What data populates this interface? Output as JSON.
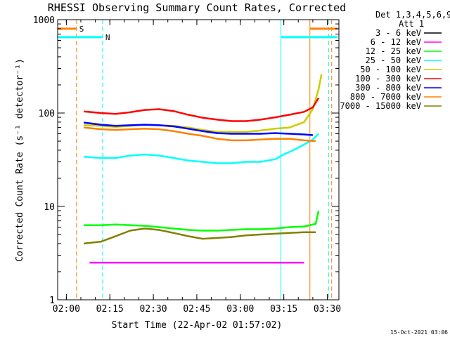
{
  "chart_data": {
    "type": "line",
    "title": "RHESSI Observing Summary Count Rates, Corrected",
    "xlabel": "Start Time (22-Apr-02 01:57:02)",
    "ylabel": "Corrected Count Rate (s⁻¹ detector⁻¹)",
    "yscale": "log",
    "ylim": [
      1,
      1000
    ],
    "xlim_minutes": [
      0,
      97
    ],
    "x_unit": "minutes since 01:57:02",
    "x_ticks": [
      {
        "m": 3,
        "label": "02:00"
      },
      {
        "m": 18,
        "label": "02:15"
      },
      {
        "m": 33,
        "label": "02:30"
      },
      {
        "m": 48,
        "label": "02:45"
      },
      {
        "m": 63,
        "label": "03:00"
      },
      {
        "m": 78,
        "label": "03:15"
      },
      {
        "m": 93,
        "label": "03:30"
      }
    ],
    "y_ticks": [
      {
        "v": 1,
        "label": "1"
      },
      {
        "v": 10,
        "label": "10"
      },
      {
        "v": 100,
        "label": "100"
      },
      {
        "v": 1000,
        "label": "1000"
      }
    ],
    "legend_header": [
      "Det 1,3,4,5,6,9,",
      "Att 1"
    ],
    "footer_date": "15-Oct-2021 03:06",
    "series": [
      {
        "name": "3 - 6 keV",
        "color": "#000000",
        "x": [],
        "y": []
      },
      {
        "name": "6 - 12 keV",
        "color": "#ff00ff",
        "x": [
          11,
          15,
          20,
          30,
          40,
          50,
          60,
          70,
          80,
          85
        ],
        "y": [
          2.5,
          2.5,
          2.5,
          2.5,
          2.5,
          2.5,
          2.5,
          2.5,
          2.5,
          2.5
        ]
      },
      {
        "name": "12 - 25 keV",
        "color": "#00ff00",
        "x": [
          9,
          15,
          20,
          30,
          35,
          40,
          45,
          50,
          55,
          60,
          65,
          70,
          75,
          80,
          85,
          89,
          90
        ],
        "y": [
          6.3,
          6.3,
          6.4,
          6.2,
          6.0,
          5.8,
          5.6,
          5.5,
          5.5,
          5.6,
          5.7,
          5.7,
          5.8,
          6.0,
          6.1,
          6.5,
          9.0
        ]
      },
      {
        "name": "25 - 50 keV",
        "color": "#00ffff",
        "x": [
          9,
          15,
          20,
          25,
          30,
          35,
          40,
          45,
          50,
          55,
          60,
          65,
          70,
          75,
          78,
          82,
          85,
          88,
          90
        ],
        "y": [
          34,
          33,
          33,
          35,
          36,
          35,
          33,
          31,
          30,
          29,
          29,
          30,
          30,
          32,
          36,
          41,
          46,
          52,
          60
        ]
      },
      {
        "name": "50 - 100 keV",
        "color": "#cccc00",
        "x": [
          9,
          15,
          20,
          25,
          30,
          35,
          40,
          45,
          50,
          55,
          60,
          65,
          70,
          75,
          80,
          85,
          88,
          90,
          91
        ],
        "y": [
          74,
          73,
          71,
          73,
          75,
          74,
          73,
          70,
          66,
          63,
          63,
          63,
          65,
          68,
          70,
          80,
          110,
          180,
          260
        ]
      },
      {
        "name": "100 - 300 keV",
        "color": "#ff0000",
        "x": [
          9,
          15,
          20,
          25,
          30,
          35,
          40,
          45,
          50,
          55,
          60,
          65,
          70,
          75,
          80,
          85,
          88,
          90
        ],
        "y": [
          104,
          100,
          98,
          102,
          108,
          110,
          105,
          96,
          89,
          85,
          82,
          82,
          85,
          90,
          96,
          103,
          115,
          145
        ]
      },
      {
        "name": "300 - 800 keV",
        "color": "#0000ff",
        "x": [
          9,
          15,
          20,
          25,
          30,
          35,
          40,
          45,
          50,
          55,
          60,
          65,
          70,
          75,
          80,
          85,
          88
        ],
        "y": [
          79,
          75,
          73,
          74,
          75,
          74,
          72,
          68,
          64,
          61,
          60,
          60,
          60,
          61,
          60,
          59,
          58
        ]
      },
      {
        "name": "800 - 7000 keV",
        "color": "#ff8000",
        "x": [
          9,
          15,
          20,
          25,
          30,
          35,
          40,
          45,
          50,
          55,
          60,
          65,
          70,
          75,
          80,
          85,
          89
        ],
        "y": [
          70,
          67,
          66,
          67,
          68,
          67,
          64,
          60,
          57,
          53,
          51,
          51,
          52,
          53,
          53,
          51,
          50
        ]
      },
      {
        "name": "7000 - 15000 keV",
        "color": "#808000",
        "x": [
          9,
          15,
          20,
          25,
          30,
          35,
          40,
          45,
          50,
          55,
          60,
          65,
          70,
          75,
          80,
          85,
          89
        ],
        "y": [
          4.0,
          4.2,
          4.8,
          5.5,
          5.8,
          5.6,
          5.2,
          4.8,
          4.5,
          4.6,
          4.7,
          4.9,
          5.0,
          5.1,
          5.2,
          5.3,
          5.3
        ]
      }
    ],
    "flag_bars": [
      {
        "label": "S",
        "color": "#ff8000",
        "segments": [
          [
            0,
            6.5
          ],
          [
            87,
            96.5
          ]
        ],
        "value": 800
      },
      {
        "label": "N",
        "color": "#00ffff",
        "segments": [
          [
            0,
            15.5
          ],
          [
            77,
            96.5
          ]
        ],
        "value": 650
      }
    ],
    "vertical_markers": [
      {
        "m": 6.5,
        "color": "#ff8000",
        "style": "dashed"
      },
      {
        "m": 15.5,
        "color": "#00ffff",
        "style": "dashed"
      },
      {
        "m": 77,
        "color": "#00ffff",
        "style": "solid"
      },
      {
        "m": 87,
        "color": "#ff8000",
        "style": "solid"
      },
      {
        "m": 93.5,
        "color": "#00ffff",
        "style": "dashed"
      },
      {
        "m": 94.5,
        "color": "#ff8000",
        "style": "dashed"
      }
    ]
  }
}
